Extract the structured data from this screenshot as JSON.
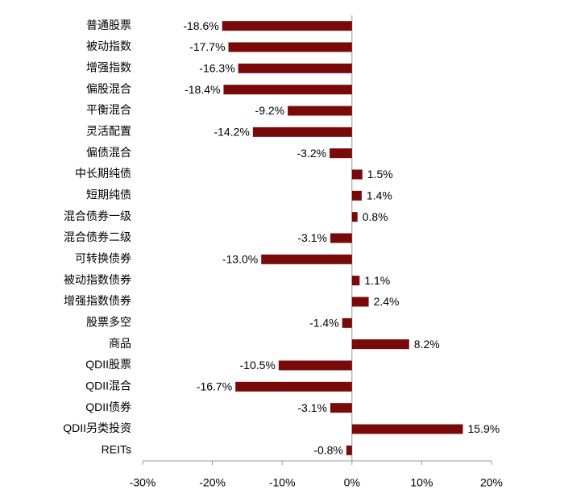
{
  "chart_data": {
    "type": "hbar",
    "categories": [
      "普通股票",
      "被动指数",
      "增强指数",
      "偏股混合",
      "平衡混合",
      "灵活配置",
      "偏债混合",
      "中长期纯债",
      "短期纯债",
      "混合债券一级",
      "混合债券二级",
      "可转换债券",
      "被动指数债券",
      "增强指数债券",
      "股票多空",
      "商品",
      "QDII股票",
      "QDII混合",
      "QDII债券",
      "QDII另类投资",
      "REITs"
    ],
    "values": [
      -18.6,
      -17.7,
      -16.3,
      -18.4,
      -9.2,
      -14.2,
      -3.2,
      1.5,
      1.4,
      0.8,
      -3.1,
      -13.0,
      1.1,
      2.4,
      -1.4,
      8.2,
      -10.5,
      -16.7,
      -3.1,
      15.9,
      -0.8
    ],
    "value_labels": [
      "-18.6%",
      "-17.7%",
      "-16.3%",
      "-18.4%",
      "-9.2%",
      "-14.2%",
      "-3.2%",
      "1.5%",
      "1.4%",
      "0.8%",
      "-3.1%",
      "-13.0%",
      "1.1%",
      "2.4%",
      "-1.4%",
      "8.2%",
      "-10.5%",
      "-16.7%",
      "-3.1%",
      "15.9%",
      "-0.8%"
    ],
    "color": "#7a0a0a",
    "xlim": [
      -30,
      20
    ],
    "xticks": [
      {
        "value": -30,
        "label": "-30%"
      },
      {
        "value": -20,
        "label": "-20%"
      },
      {
        "value": -10,
        "label": "-10%"
      },
      {
        "value": 0,
        "label": "0%"
      },
      {
        "value": 10,
        "label": "10%"
      },
      {
        "value": 20,
        "label": "20%"
      }
    ]
  }
}
